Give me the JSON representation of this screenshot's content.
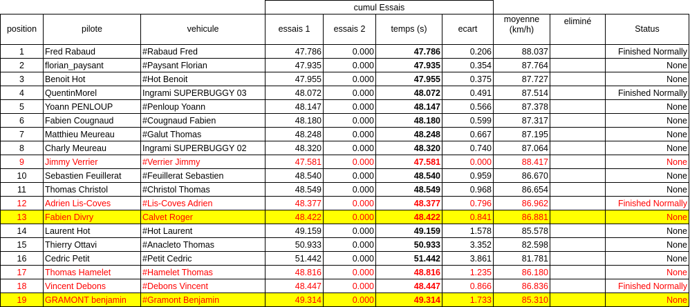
{
  "title": "cumul Essais",
  "headers": {
    "position": "position",
    "pilote": "pilote",
    "vehicule": "vehicule",
    "essais1": "essais 1",
    "essais2": "essais 2",
    "temps": "temps (s)",
    "ecart": "ecart",
    "moyenne_line1": "moyenne",
    "moyenne_line2": "(km/h)",
    "elimine": "eliminé",
    "status": "Status"
  },
  "rows": [
    {
      "position": "1",
      "pilote": "Fred Rabaud",
      "vehicule": "#Rabaud Fred",
      "essais1": "47.786",
      "essais2": "0.000",
      "temps": "47.786",
      "ecart": "0.206",
      "moyenne": "88.037",
      "elimine": "",
      "status": "Finished Normally",
      "highlight": "none"
    },
    {
      "position": "2",
      "pilote": "florian_paysant",
      "vehicule": "#Paysant Florian",
      "essais1": "47.935",
      "essais2": "0.000",
      "temps": "47.935",
      "ecart": "0.354",
      "moyenne": "87.764",
      "elimine": "",
      "status": "None",
      "highlight": "none"
    },
    {
      "position": "3",
      "pilote": "Benoit Hot",
      "vehicule": "#Hot Benoit",
      "essais1": "47.955",
      "essais2": "0.000",
      "temps": "47.955",
      "ecart": "0.375",
      "moyenne": "87.727",
      "elimine": "",
      "status": "None",
      "highlight": "none"
    },
    {
      "position": "4",
      "pilote": "QuentinMorel",
      "vehicule": "Ingrami SUPERBUGGY 03",
      "essais1": "48.072",
      "essais2": "0.000",
      "temps": "48.072",
      "ecart": "0.491",
      "moyenne": "87.514",
      "elimine": "",
      "status": "Finished Normally",
      "highlight": "none"
    },
    {
      "position": "5",
      "pilote": "Yoann PENLOUP",
      "vehicule": "#Penloup Yoann",
      "essais1": "48.147",
      "essais2": "0.000",
      "temps": "48.147",
      "ecart": "0.566",
      "moyenne": "87.378",
      "elimine": "",
      "status": "None",
      "highlight": "none"
    },
    {
      "position": "6",
      "pilote": "Fabien Cougnaud",
      "vehicule": "#Cougnaud Fabien",
      "essais1": "48.180",
      "essais2": "0.000",
      "temps": "48.180",
      "ecart": "0.599",
      "moyenne": "87.317",
      "elimine": "",
      "status": "None",
      "highlight": "none"
    },
    {
      "position": "7",
      "pilote": "Matthieu Meureau",
      "vehicule": "#Galut Thomas",
      "essais1": "48.248",
      "essais2": "0.000",
      "temps": "48.248",
      "ecart": "0.667",
      "moyenne": "87.195",
      "elimine": "",
      "status": "None",
      "highlight": "none"
    },
    {
      "position": "8",
      "pilote": "Charly Meureau",
      "vehicule": "Ingrami SUPERBUGGY 02",
      "essais1": "48.320",
      "essais2": "0.000",
      "temps": "48.320",
      "ecart": "0.740",
      "moyenne": "87.064",
      "elimine": "",
      "status": "None",
      "highlight": "none"
    },
    {
      "position": "9",
      "pilote": "Jimmy Verrier",
      "vehicule": "#Verrier Jimmy",
      "essais1": "47.581",
      "essais2": "0.000",
      "temps": "47.581",
      "ecart": "0.000",
      "moyenne": "88.417",
      "elimine": "",
      "status": "None",
      "highlight": "red"
    },
    {
      "position": "10",
      "pilote": "Sebastien Feuillerat",
      "vehicule": "#Feuillerat Sebastien",
      "essais1": "48.540",
      "essais2": "0.000",
      "temps": "48.540",
      "ecart": "0.959",
      "moyenne": "86.670",
      "elimine": "",
      "status": "None",
      "highlight": "none"
    },
    {
      "position": "11",
      "pilote": "Thomas Christol",
      "vehicule": "#Christol Thomas",
      "essais1": "48.549",
      "essais2": "0.000",
      "temps": "48.549",
      "ecart": "0.968",
      "moyenne": "86.654",
      "elimine": "",
      "status": "None",
      "highlight": "none"
    },
    {
      "position": "12",
      "pilote": "Adrien Lis-Coves",
      "vehicule": "#Lis-Coves Adrien",
      "essais1": "48.377",
      "essais2": "0.000",
      "temps": "48.377",
      "ecart": "0.796",
      "moyenne": "86.962",
      "elimine": "",
      "status": "Finished Normally",
      "highlight": "red"
    },
    {
      "position": "13",
      "pilote": "Fabien Divry",
      "vehicule": "Calvet Roger",
      "essais1": "48.422",
      "essais2": "0.000",
      "temps": "48.422",
      "ecart": "0.841",
      "moyenne": "86.881",
      "elimine": "",
      "status": "None",
      "highlight": "yellow"
    },
    {
      "position": "14",
      "pilote": "Laurent Hot",
      "vehicule": "#Hot Laurent",
      "essais1": "49.159",
      "essais2": "0.000",
      "temps": "49.159",
      "ecart": "1.578",
      "moyenne": "85.578",
      "elimine": "",
      "status": "None",
      "highlight": "none"
    },
    {
      "position": "15",
      "pilote": "Thierry Ottavi",
      "vehicule": "#Anacleto Thomas",
      "essais1": "50.933",
      "essais2": "0.000",
      "temps": "50.933",
      "ecart": "3.352",
      "moyenne": "82.598",
      "elimine": "",
      "status": "None",
      "highlight": "none"
    },
    {
      "position": "16",
      "pilote": "Cedric Petit",
      "vehicule": "#Petit Cedric",
      "essais1": "51.442",
      "essais2": "0.000",
      "temps": "51.442",
      "ecart": "3.861",
      "moyenne": "81.781",
      "elimine": "",
      "status": "None",
      "highlight": "none"
    },
    {
      "position": "17",
      "pilote": "Thomas Hamelet",
      "vehicule": "#Hamelet Thomas",
      "essais1": "48.816",
      "essais2": "0.000",
      "temps": "48.816",
      "ecart": "1.235",
      "moyenne": "86.180",
      "elimine": "",
      "status": "None",
      "highlight": "red"
    },
    {
      "position": "18",
      "pilote": "Vincent Debons",
      "vehicule": "#Debons Vincent",
      "essais1": "48.447",
      "essais2": "0.000",
      "temps": "48.447",
      "ecart": "0.866",
      "moyenne": "86.836",
      "elimine": "",
      "status": "Finished Normally",
      "highlight": "red"
    },
    {
      "position": "19",
      "pilote": "GRAMONT benjamin",
      "vehicule": "#Gramont Benjamin",
      "essais1": "49.314",
      "essais2": "0.000",
      "temps": "49.314",
      "ecart": "1.733",
      "moyenne": "85.310",
      "elimine": "",
      "status": "None",
      "highlight": "yellow"
    }
  ],
  "colors": {
    "red_text": "#ff0000",
    "yellow_fill": "#ffff00",
    "border": "#000000"
  }
}
